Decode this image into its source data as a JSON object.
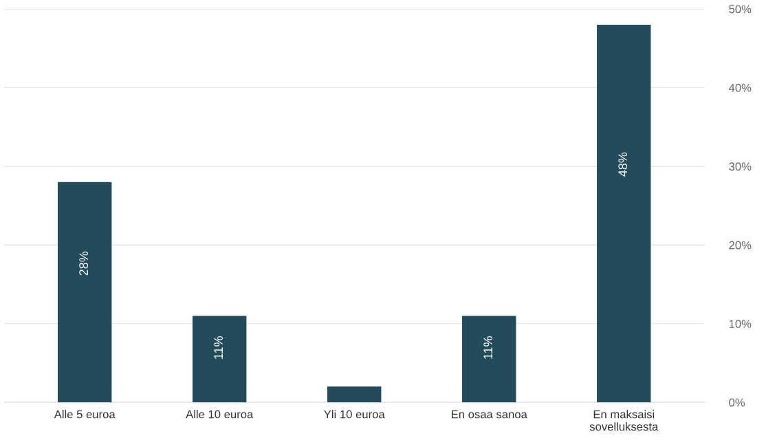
{
  "chart_data": {
    "type": "bar",
    "categories": [
      "Alle 5 euroa",
      "Alle 10 euroa",
      "Yli 10 euroa",
      "En osaa sanoa",
      "En maksaisi\nsovelluksesta"
    ],
    "values": [
      28,
      11,
      2,
      11,
      48
    ],
    "value_labels": [
      "28%",
      "11%",
      null,
      "11%",
      "48%"
    ],
    "color": "#234b5a",
    "ylim": [
      0,
      50
    ],
    "yticks": [
      {
        "value": 0,
        "label": "0%"
      },
      {
        "value": 10,
        "label": "10%"
      },
      {
        "value": 20,
        "label": "20%"
      },
      {
        "value": 30,
        "label": "30%"
      },
      {
        "value": 40,
        "label": "40%"
      },
      {
        "value": 50,
        "label": "50%"
      }
    ],
    "grid": "y"
  }
}
